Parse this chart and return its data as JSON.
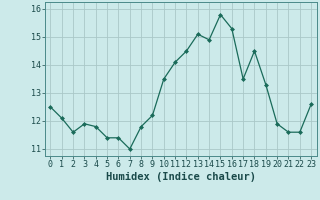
{
  "x": [
    0,
    1,
    2,
    3,
    4,
    5,
    6,
    7,
    8,
    9,
    10,
    11,
    12,
    13,
    14,
    15,
    16,
    17,
    18,
    19,
    20,
    21,
    22,
    23
  ],
  "y": [
    12.5,
    12.1,
    11.6,
    11.9,
    11.8,
    11.4,
    11.4,
    11.0,
    11.8,
    12.2,
    13.5,
    14.1,
    14.5,
    15.1,
    14.9,
    15.8,
    15.3,
    13.5,
    14.5,
    13.3,
    11.9,
    11.6,
    11.6,
    12.6
  ],
  "xlabel": "Humidex (Indice chaleur)",
  "xlim": [
    -0.5,
    23.5
  ],
  "ylim": [
    10.75,
    16.25
  ],
  "yticks": [
    11,
    12,
    13,
    14,
    15,
    16
  ],
  "xticks": [
    0,
    1,
    2,
    3,
    4,
    5,
    6,
    7,
    8,
    9,
    10,
    11,
    12,
    13,
    14,
    15,
    16,
    17,
    18,
    19,
    20,
    21,
    22,
    23
  ],
  "line_color": "#1a6b5a",
  "marker": "D",
  "marker_size": 2.0,
  "bg_color": "#cceaea",
  "grid_color": "#aac8c8",
  "xlabel_fontsize": 7.5,
  "tick_fontsize": 6.0
}
